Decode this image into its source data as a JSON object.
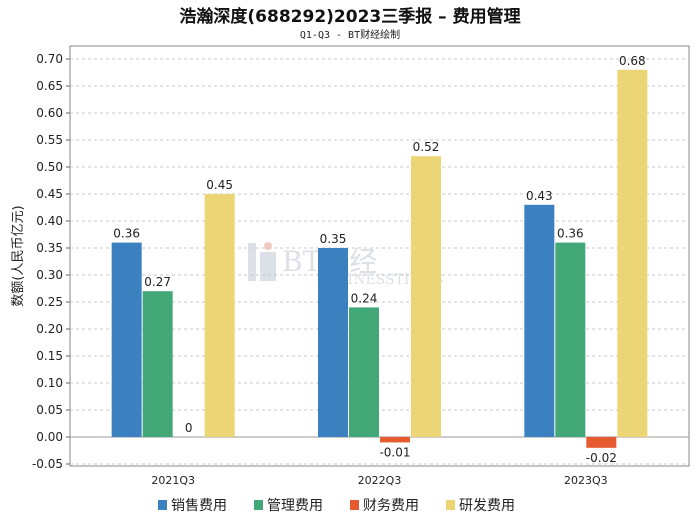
{
  "chart_data": {
    "type": "bar",
    "title": "浩瀚深度(688292)2023三季报 – 费用管理",
    "subtitle": "Q1-Q3 - BT财经绘制",
    "xlabel": "",
    "ylabel": "数额(人民币亿元)",
    "categories": [
      "2021Q3",
      "2022Q3",
      "2023Q3"
    ],
    "series": [
      {
        "name": "销售费用",
        "color": "#3b80bf",
        "values": [
          0.36,
          0.35,
          0.43
        ],
        "labels": [
          "0.36",
          "0.35",
          "0.43"
        ]
      },
      {
        "name": "管理费用",
        "color": "#43a878",
        "values": [
          0.27,
          0.24,
          0.36
        ],
        "labels": [
          "0.27",
          "0.24",
          "0.36"
        ]
      },
      {
        "name": "财务费用",
        "color": "#e55a2e",
        "values": [
          0,
          -0.01,
          -0.02
        ],
        "labels": [
          "0",
          "-0.01",
          "-0.02"
        ]
      },
      {
        "name": "研发费用",
        "color": "#ecd574",
        "values": [
          0.45,
          0.52,
          0.68
        ],
        "labels": [
          "0.45",
          "0.52",
          "0.68"
        ]
      }
    ],
    "ylim": [
      -0.05,
      0.7
    ],
    "yticks": [
      "-0.05",
      "0.00",
      "0.05",
      "0.10",
      "0.15",
      "0.20",
      "0.25",
      "0.30",
      "0.35",
      "0.40",
      "0.45",
      "0.50",
      "0.55",
      "0.60",
      "0.65",
      "0.70"
    ],
    "grid": true,
    "legend": "bottom"
  },
  "watermark": {
    "main": "BT财经",
    "sub": "BUSINESSTIMES"
  }
}
